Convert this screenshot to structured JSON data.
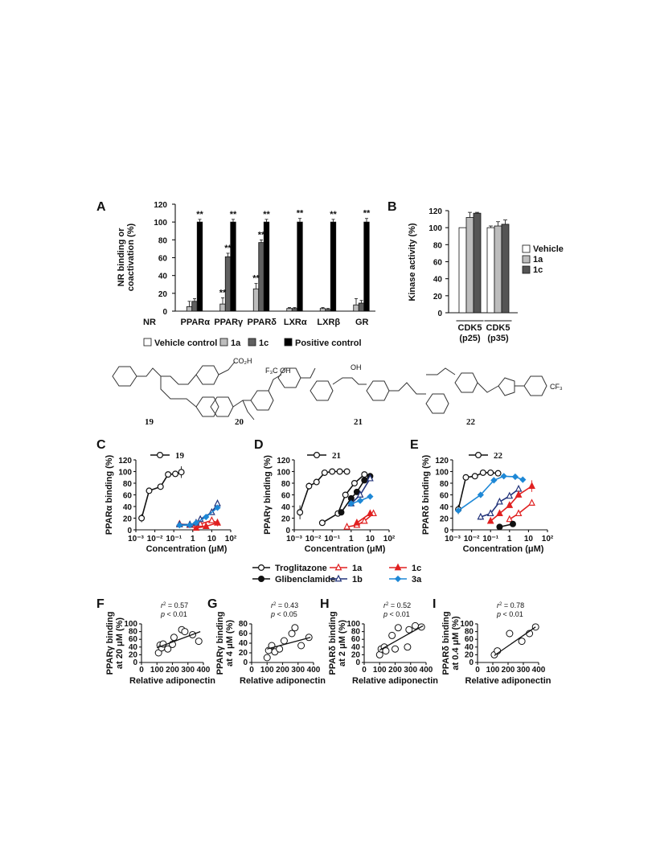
{
  "chart_data": [
    {
      "panel": "A",
      "type": "bar",
      "ylabel": "NR binding or coactivation (%)",
      "ylim": [
        0,
        120
      ],
      "yticks": [
        "0",
        "20",
        "40",
        "60",
        "80",
        "100",
        "120"
      ],
      "xprefix": "NR",
      "categories": [
        "PPARα",
        "PPARγ",
        "PPARδ",
        "LXRα",
        "LXRβ",
        "GR"
      ],
      "series": [
        {
          "name": "Vehicle control",
          "color": "#ffffff",
          "values": [
            0,
            0,
            0,
            0,
            0,
            0
          ]
        },
        {
          "name": "1a",
          "color": "#bdbdbd",
          "values": [
            5,
            8,
            25,
            3,
            3,
            7
          ]
        },
        {
          "name": "1c",
          "color": "#606060",
          "values": [
            11,
            61,
            77,
            3,
            2,
            9
          ]
        },
        {
          "name": "Positive control",
          "color": "#000000",
          "values": [
            100,
            100,
            100,
            100,
            100,
            100
          ]
        }
      ],
      "errors": [
        [
          0,
          0,
          0,
          0,
          0,
          0
        ],
        [
          6,
          7,
          6,
          1,
          1,
          7
        ],
        [
          3,
          4,
          3,
          1,
          1,
          3
        ],
        [
          3,
          3,
          3,
          4,
          3,
          4
        ]
      ],
      "annotations": [
        {
          "category": 0,
          "series": 3,
          "text": "**"
        },
        {
          "category": 1,
          "series": 1,
          "text": "**"
        },
        {
          "category": 1,
          "series": 2,
          "text": "**"
        },
        {
          "category": 1,
          "series": 3,
          "text": "**"
        },
        {
          "category": 2,
          "series": 1,
          "text": "**"
        },
        {
          "category": 2,
          "series": 2,
          "text": "**"
        },
        {
          "category": 2,
          "series": 3,
          "text": "**"
        },
        {
          "category": 3,
          "series": 3,
          "text": "**"
        },
        {
          "category": 4,
          "series": 3,
          "text": "**"
        },
        {
          "category": 5,
          "series": 3,
          "text": "**"
        }
      ],
      "legend": [
        "Vehicle control",
        "1a",
        "1c",
        "Positive control"
      ]
    },
    {
      "panel": "B",
      "type": "bar",
      "ylabel": "Kinase activity (%)",
      "ylim": [
        0,
        120
      ],
      "yticks": [
        "0",
        "20",
        "40",
        "60",
        "80",
        "100",
        "120"
      ],
      "categories": [
        "CDK5 (p25)",
        "CDK5 (p35)"
      ],
      "category_lines": [
        [
          "CDK5",
          "(p25)"
        ],
        [
          "CDK5",
          "(p35)"
        ]
      ],
      "series": [
        {
          "name": "Vehicle",
          "color": "#ffffff",
          "values": [
            100,
            100
          ]
        },
        {
          "name": "1a",
          "color": "#bdbdbd",
          "values": [
            112,
            102
          ]
        },
        {
          "name": "1c",
          "color": "#555555",
          "values": [
            117,
            104
          ]
        }
      ],
      "errors": [
        [
          0,
          2
        ],
        [
          6,
          5
        ],
        [
          1,
          5
        ]
      ],
      "legend": [
        "Vehicle",
        "1a",
        "1c"
      ]
    },
    {
      "panel": "C",
      "type": "line",
      "xlabel": "Concentration (μM)",
      "ylabel": "PPARα binding (%)",
      "xscale": "log",
      "xlim": [
        0.001,
        100
      ],
      "ylim": [
        0,
        120
      ],
      "yticks": [
        "0",
        "20",
        "40",
        "60",
        "80",
        "100",
        "120"
      ],
      "series": [
        {
          "name": "19",
          "color": "#111111",
          "marker": "circle-open",
          "x": [
            0.002,
            0.005,
            0.02,
            0.05,
            0.12,
            0.25
          ],
          "y": [
            20,
            67,
            74,
            95,
            96,
            99
          ],
          "err": [
            7,
            2,
            3,
            3,
            5,
            10
          ]
        },
        {
          "name": "1a",
          "color": "#e02020",
          "marker": "triangle-open",
          "x": [
            0.2,
            0.7,
            1.5,
            2.5,
            10,
            20
          ],
          "y": [
            10,
            8,
            8,
            10,
            16,
            12
          ],
          "err": [
            2,
            2,
            2,
            3,
            3,
            3
          ]
        },
        {
          "name": "1b",
          "color": "#22337a",
          "marker": "triangle-open",
          "x": [
            0.2,
            0.7,
            1.5,
            2.5,
            10,
            20
          ],
          "y": [
            9,
            9,
            12,
            18,
            30,
            45
          ],
          "err": [
            2,
            2,
            3,
            3,
            3,
            4
          ]
        },
        {
          "name": "1c",
          "color": "#e02020",
          "marker": "triangle-filled",
          "x": [
            1.5,
            5,
            20
          ],
          "y": [
            3,
            6,
            12
          ],
          "err": [
            2,
            2,
            6
          ]
        },
        {
          "name": "3a",
          "color": "#1e88d6",
          "marker": "diamond",
          "x": [
            0.2,
            0.7,
            1.5,
            5,
            20
          ],
          "y": [
            8,
            8,
            12,
            22,
            38
          ],
          "err": [
            2,
            2,
            2,
            3,
            4
          ]
        }
      ],
      "legend": [
        "19"
      ]
    },
    {
      "panel": "D",
      "type": "line",
      "xlabel": "Concentration (μM)",
      "ylabel": "PPARγ binding (%)",
      "xscale": "log",
      "xlim": [
        0.001,
        100
      ],
      "ylim": [
        0,
        120
      ],
      "yticks": [
        "0",
        "20",
        "40",
        "60",
        "80",
        "100",
        "120"
      ],
      "series": [
        {
          "name": "21",
          "color": "#111111",
          "marker": "circle-open",
          "x": [
            0.002,
            0.006,
            0.015,
            0.04,
            0.1,
            0.25,
            0.6
          ],
          "y": [
            30,
            75,
            82,
            98,
            100,
            100,
            100
          ],
          "err": [
            12,
            6,
            4,
            3,
            2,
            2,
            2
          ]
        },
        {
          "name": "Troglitazone",
          "color": "#111111",
          "marker": "circle-open",
          "x": [
            0.03,
            0.2,
            0.5,
            1.5,
            5
          ],
          "y": [
            12,
            28,
            60,
            80,
            95
          ],
          "err": [
            3,
            3,
            3,
            3,
            3
          ]
        },
        {
          "name": "Glibenclamide",
          "color": "#111111",
          "marker": "circle-filled",
          "x": [
            0.3,
            1,
            2,
            5,
            10
          ],
          "y": [
            30,
            54,
            65,
            85,
            92
          ],
          "err": [
            3,
            3,
            3,
            4,
            4
          ]
        },
        {
          "name": "1a",
          "color": "#e02020",
          "marker": "triangle-open",
          "x": [
            0.6,
            2,
            5,
            15
          ],
          "y": [
            5,
            8,
            15,
            28
          ],
          "err": [
            2,
            2,
            3,
            3
          ]
        },
        {
          "name": "1b",
          "color": "#22337a",
          "marker": "triangle-open",
          "x": [
            1,
            3,
            10
          ],
          "y": [
            45,
            60,
            88
          ],
          "err": [
            3,
            3,
            4
          ]
        },
        {
          "name": "1c",
          "color": "#e02020",
          "marker": "triangle-filled",
          "x": [
            2,
            10
          ],
          "y": [
            12,
            28
          ],
          "err": [
            3,
            3
          ]
        },
        {
          "name": "3a",
          "color": "#1e88d6",
          "marker": "diamond",
          "x": [
            1,
            3,
            10
          ],
          "y": [
            45,
            50,
            57
          ],
          "err": [
            3,
            3,
            3
          ]
        }
      ],
      "legend": [
        "21"
      ]
    },
    {
      "panel": "E",
      "type": "line",
      "xlabel": "Concentration (μM)",
      "ylabel": "PPARδ binding (%)",
      "xscale": "log",
      "xlim": [
        0.001,
        100
      ],
      "ylim": [
        0,
        120
      ],
      "yticks": [
        "0",
        "20",
        "40",
        "60",
        "80",
        "100",
        "120"
      ],
      "series": [
        {
          "name": "22",
          "color": "#111111",
          "marker": "circle-open",
          "x": [
            0.002,
            0.005,
            0.015,
            0.04,
            0.1,
            0.25
          ],
          "y": [
            35,
            90,
            92,
            98,
            98,
            97
          ],
          "err": [
            8,
            4,
            3,
            3,
            3,
            3
          ]
        },
        {
          "name": "3a",
          "color": "#1e88d6",
          "marker": "diamond",
          "x": [
            0.002,
            0.03,
            0.15,
            0.5,
            2,
            5
          ],
          "y": [
            33,
            60,
            85,
            92,
            91,
            86
          ],
          "err": [
            4,
            4,
            4,
            3,
            3,
            3
          ]
        },
        {
          "name": "1a",
          "color": "#e02020",
          "marker": "triangle-open",
          "x": [
            1,
            3,
            15
          ],
          "y": [
            18,
            28,
            46
          ],
          "err": [
            3,
            3,
            3
          ]
        },
        {
          "name": "1b",
          "color": "#22337a",
          "marker": "triangle-open",
          "x": [
            0.03,
            0.1,
            0.3,
            1,
            3
          ],
          "y": [
            22,
            28,
            48,
            58,
            70
          ],
          "err": [
            5,
            3,
            3,
            3,
            3
          ]
        },
        {
          "name": "1c",
          "color": "#e02020",
          "marker": "triangle-filled",
          "x": [
            0.1,
            0.3,
            1,
            3,
            15
          ],
          "y": [
            15,
            28,
            42,
            60,
            75
          ],
          "err": [
            3,
            3,
            3,
            3,
            10
          ]
        },
        {
          "name": "Glibenclamide",
          "color": "#111111",
          "marker": "circle-filled",
          "x": [
            0.3,
            1.5
          ],
          "y": [
            5,
            10
          ],
          "err": [
            2,
            2
          ]
        }
      ],
      "legend": [
        "22"
      ]
    },
    {
      "panel": "F",
      "type": "scatter",
      "xlabel": "Relative adiponectin",
      "ylabel": "PPARγ binding at 20 μM (%)",
      "xlim": [
        0,
        400
      ],
      "xticks": [
        "0",
        "100",
        "200",
        "300",
        "400"
      ],
      "ylim": [
        0,
        100
      ],
      "yticks": [
        "0",
        "20",
        "40",
        "60",
        "80",
        "100"
      ],
      "stats": {
        "r2": "= 0.57",
        "p": "< 0.01"
      },
      "x": [
        110,
        120,
        130,
        140,
        170,
        200,
        210,
        260,
        280,
        330,
        370
      ],
      "y": [
        25,
        45,
        38,
        48,
        35,
        47,
        65,
        85,
        80,
        72,
        55
      ],
      "fit": [
        [
          100,
          38
        ],
        [
          380,
          80
        ]
      ]
    },
    {
      "panel": "G",
      "type": "scatter",
      "xlabel": "Relative adiponectin",
      "ylabel": "PPARγ binding at 4 μM (%)",
      "xlim": [
        0,
        400
      ],
      "xticks": [
        "0",
        "100",
        "200",
        "300",
        "400"
      ],
      "ylim": [
        0,
        80
      ],
      "yticks": [
        "0",
        "20",
        "40",
        "60",
        "80"
      ],
      "stats": {
        "r2": "= 0.43",
        "p": "< 0.05"
      },
      "x": [
        100,
        110,
        130,
        150,
        180,
        210,
        260,
        280,
        320,
        370
      ],
      "y": [
        10,
        25,
        35,
        22,
        28,
        45,
        60,
        72,
        35,
        52
      ],
      "fit": [
        [
          100,
          28
        ],
        [
          380,
          52
        ]
      ]
    },
    {
      "panel": "H",
      "type": "scatter",
      "xlabel": "Relative adiponectin",
      "ylabel": "PPARδ binding at 2 μM (%)",
      "xlim": [
        0,
        400
      ],
      "xticks": [
        "0",
        "100",
        "200",
        "300",
        "400"
      ],
      "ylim": [
        0,
        100
      ],
      "yticks": [
        "0",
        "20",
        "40",
        "60",
        "80",
        "100"
      ],
      "stats": {
        "r2": "= 0.52",
        "p": "< 0.01"
      },
      "x": [
        100,
        110,
        130,
        140,
        180,
        200,
        220,
        280,
        290,
        330,
        370
      ],
      "y": [
        20,
        35,
        40,
        30,
        70,
        35,
        90,
        40,
        85,
        95,
        92
      ],
      "fit": [
        [
          100,
          32
        ],
        [
          380,
          95
        ]
      ]
    },
    {
      "panel": "I",
      "type": "scatter",
      "xlabel": "Relative adiponectin",
      "ylabel": "PPARδ binding at 0.4 μM (%)",
      "xlim": [
        0,
        400
      ],
      "xticks": [
        "0",
        "100",
        "200",
        "300",
        "400"
      ],
      "ylim": [
        0,
        100
      ],
      "yticks": [
        "0",
        "20",
        "40",
        "60",
        "80",
        "100"
      ],
      "stats": {
        "r2": "= 0.78",
        "p": "< 0.01"
      },
      "x": [
        110,
        130,
        210,
        290,
        340,
        380
      ],
      "y": [
        20,
        30,
        75,
        55,
        75,
        92
      ],
      "fit": [
        [
          110,
          18
        ],
        [
          380,
          92
        ]
      ]
    }
  ],
  "structures": [
    {
      "label": "19",
      "text": "CO₂H"
    },
    {
      "label": "20",
      "text": "F₃C OH"
    },
    {
      "label": "21",
      "text": "OH"
    },
    {
      "label": "22",
      "text": "CF₃"
    }
  ],
  "shared_legend": [
    {
      "name": "Troglitazone",
      "color": "#111111",
      "marker": "circle-open"
    },
    {
      "name": "1a",
      "color": "#e02020",
      "marker": "triangle-open"
    },
    {
      "name": "1c",
      "color": "#e02020",
      "marker": "triangle-filled"
    },
    {
      "name": "Glibenclamide",
      "color": "#111111",
      "marker": "circle-filled"
    },
    {
      "name": "1b",
      "color": "#22337a",
      "marker": "triangle-open"
    },
    {
      "name": "3a",
      "color": "#1e88d6",
      "marker": "diamond"
    }
  ]
}
